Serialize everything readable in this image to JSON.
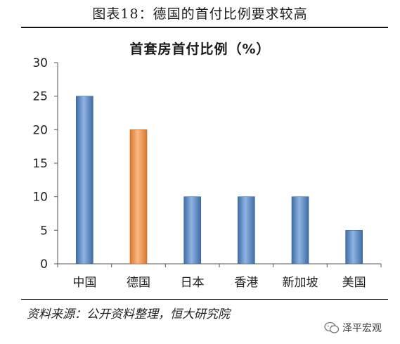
{
  "figure": {
    "header": "图表18：德国的首付比例要求较高",
    "source": "资料来源：公开资料整理，恒大研究院",
    "watermark": "泽平宏观"
  },
  "chart_data": {
    "type": "bar",
    "title": "首套房首付比例（%）",
    "categories": [
      "中国",
      "德国",
      "日本",
      "香港",
      "新加坡",
      "美国"
    ],
    "values": [
      25,
      20,
      10,
      10,
      10,
      5
    ],
    "ylim": [
      0,
      30
    ],
    "yticks": [
      0,
      5,
      10,
      15,
      20,
      25,
      30
    ],
    "xlabel": "",
    "ylabel": "",
    "grid": false,
    "legend": "none",
    "colors": {
      "default": "#4f81bd",
      "highlight": "#f79646",
      "highlight_category": "德国"
    }
  }
}
